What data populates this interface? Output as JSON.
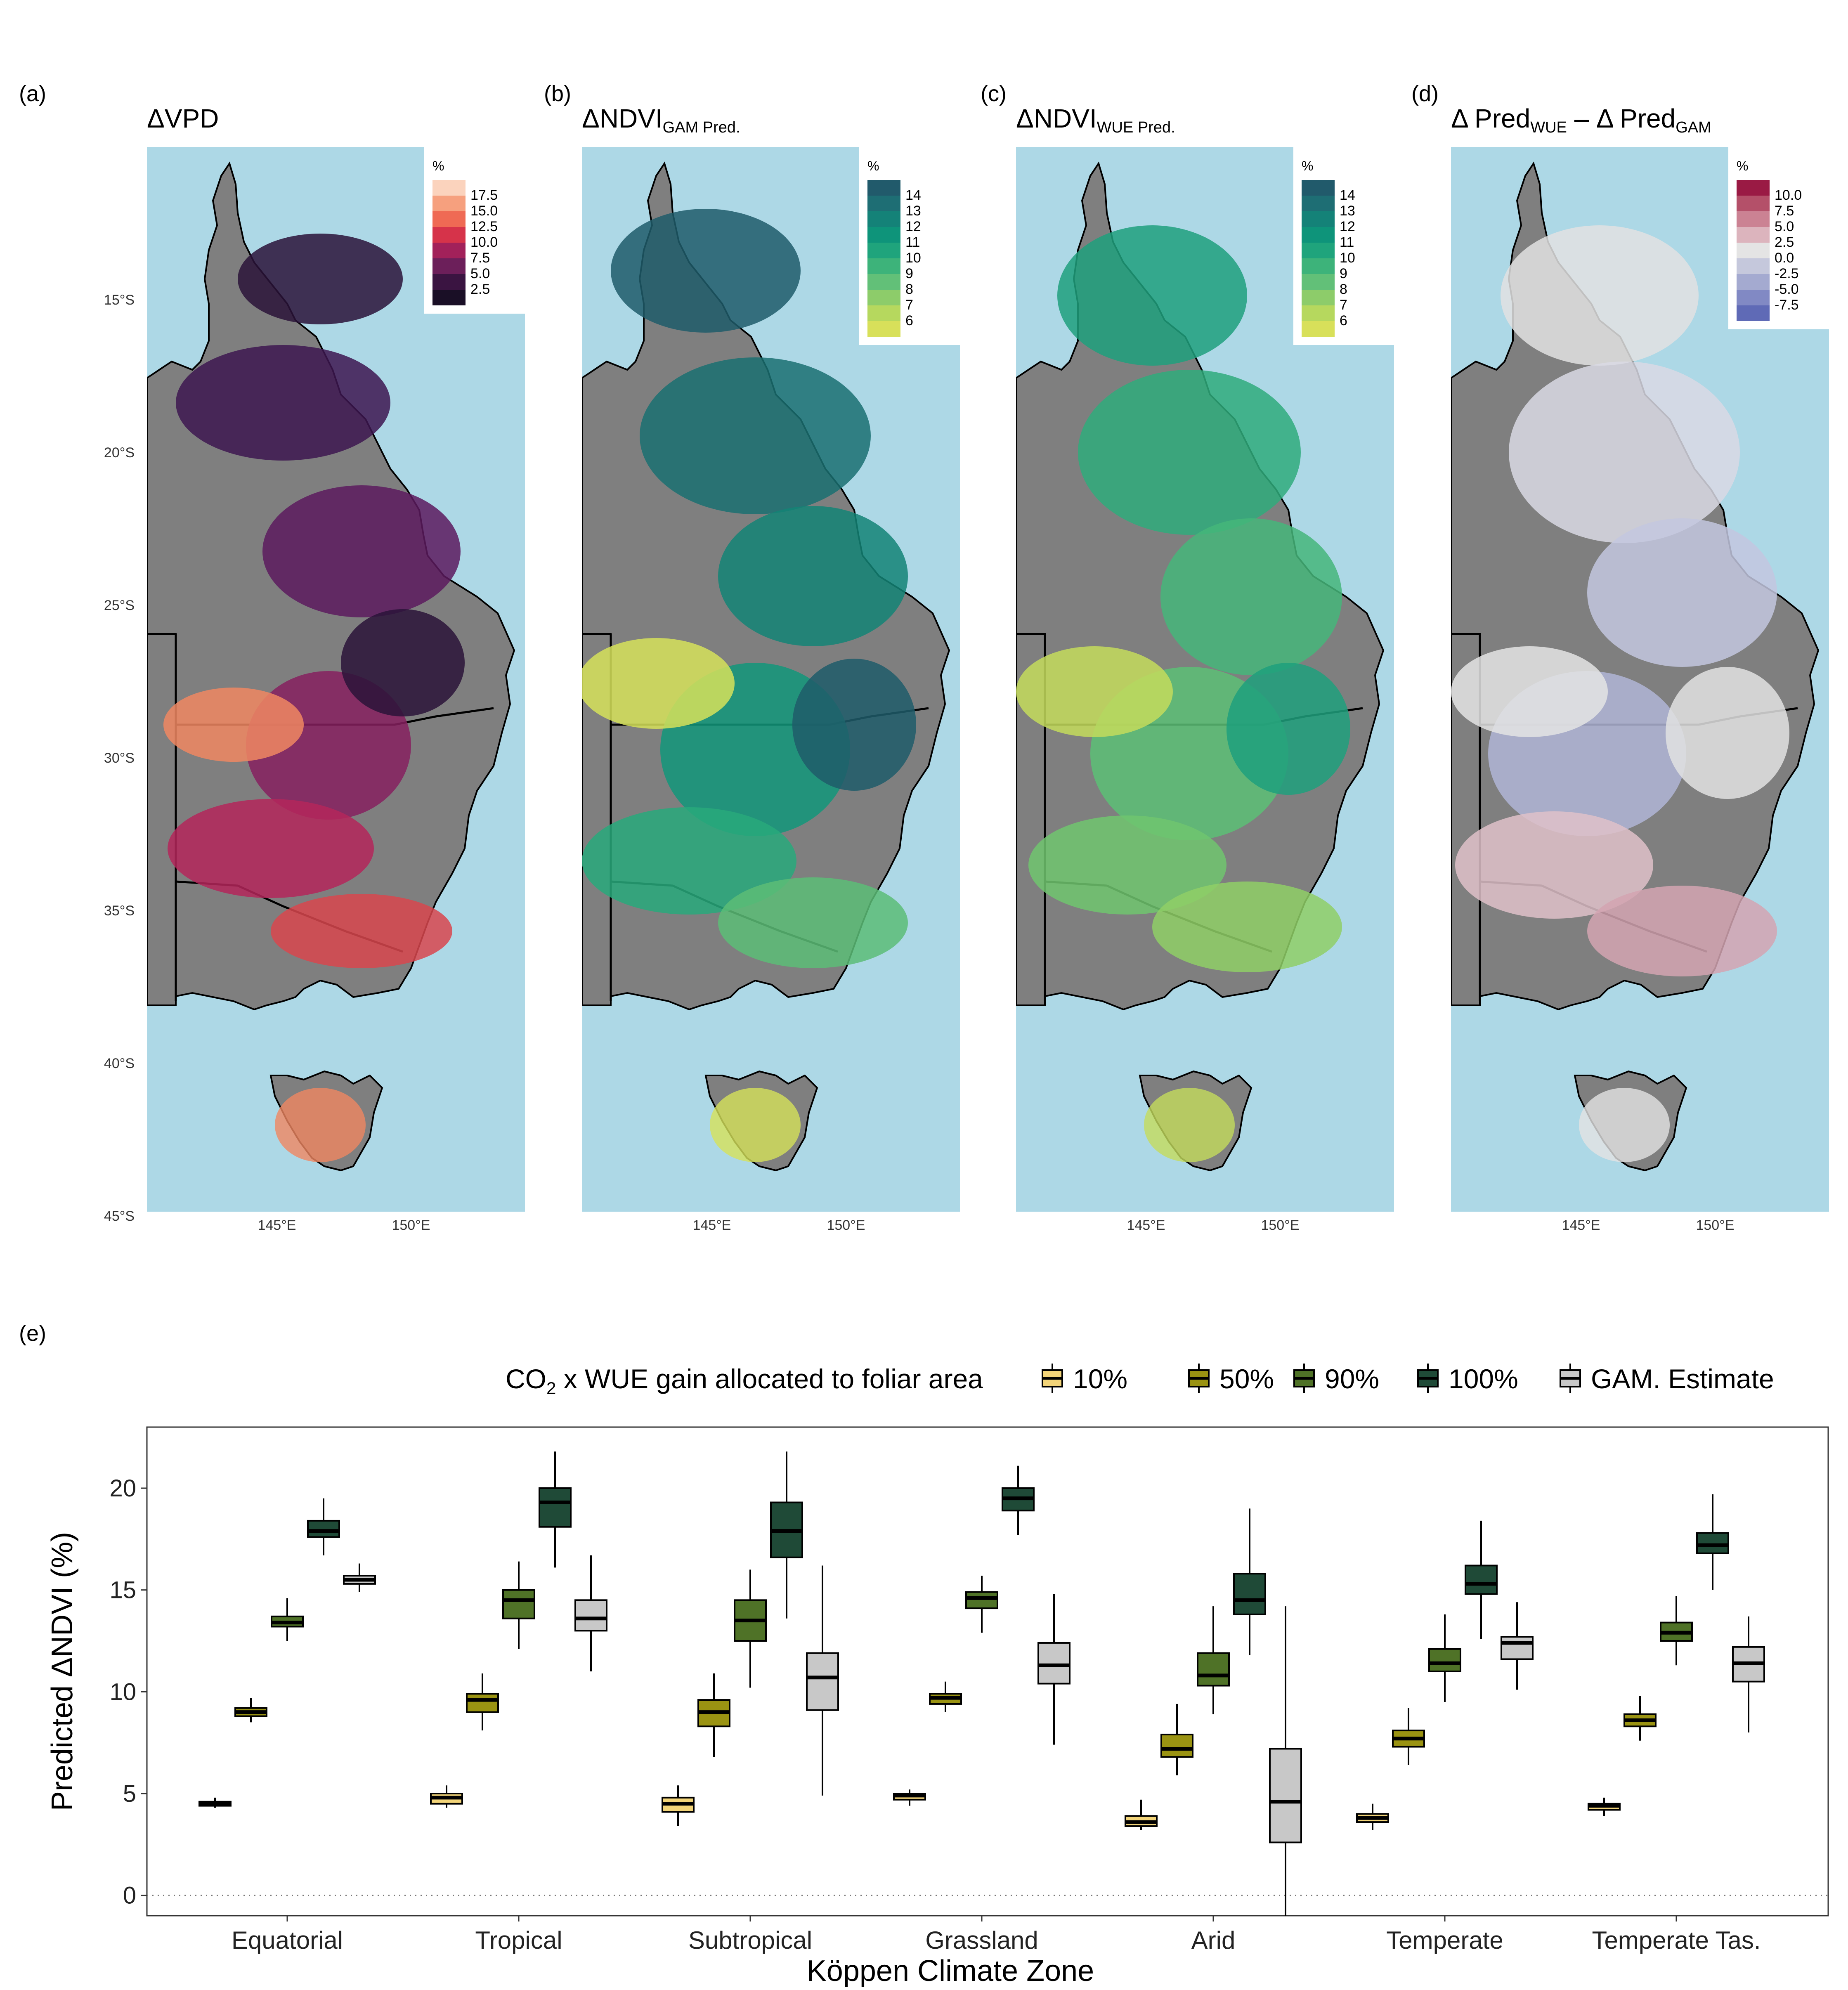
{
  "panels": [
    {
      "letter": "(a)",
      "title_main": "ΔVPD",
      "title_sub": "",
      "legend_unit": "%",
      "legend_labels": [
        "17.5",
        "15.0",
        "12.5",
        "10.0",
        "7.5",
        "5.0",
        "2.5"
      ],
      "legend_colors": [
        "#fbd3bd",
        "#f6a07e",
        "#ef6a54",
        "#d6334a",
        "#a2215a",
        "#6c1f5a",
        "#3a1441",
        "#1a0f26"
      ],
      "land_palette": [
        "#2a1338",
        "#3d1650",
        "#5c1a5e",
        "#86205f",
        "#b4265b",
        "#d8474d",
        "#f08762"
      ]
    },
    {
      "letter": "(b)",
      "title_main": "ΔNDVI",
      "title_sub": "GAM Pred.",
      "legend_unit": "%",
      "legend_labels": [
        "14",
        "13",
        "12",
        "11",
        "10",
        "9",
        "8",
        "7",
        "6"
      ],
      "legend_colors": [
        "#215a6b",
        "#1e6e74",
        "#148278",
        "#0e947a",
        "#1fa47c",
        "#3db37a",
        "#62c078",
        "#8dcc6a",
        "#b6d85e",
        "#d8e05a"
      ],
      "land_palette": [
        "#1f5c6a",
        "#1a7071",
        "#138476",
        "#12977a",
        "#28a97b",
        "#5cbd77",
        "#d6e25a"
      ]
    },
    {
      "letter": "(c)",
      "title_main": "ΔNDVI",
      "title_sub": "WUE Pred.",
      "legend_unit": "%",
      "legend_labels": [
        "14",
        "13",
        "12",
        "11",
        "10",
        "9",
        "8",
        "7",
        "6"
      ],
      "legend_colors": [
        "#215a6b",
        "#1e6e74",
        "#148278",
        "#0e947a",
        "#1fa47c",
        "#3db37a",
        "#62c078",
        "#8dcc6a",
        "#b6d85e",
        "#d8e05a"
      ],
      "land_palette": [
        "#1fa07d",
        "#2fac7b",
        "#45b67a",
        "#5cbf76",
        "#70c66f",
        "#8fcf66",
        "#c4dc5c"
      ]
    },
    {
      "letter": "(d)",
      "title_main": "Δ Pred",
      "title_sub": "WUE",
      "title_mid": " – Δ Pred",
      "title_sub2": "GAM",
      "legend_unit": "%",
      "legend_labels": [
        "10.0",
        "7.5",
        "5.0",
        "2.5",
        "0.0",
        "-2.5",
        "-5.0",
        "-7.5"
      ],
      "legend_colors": [
        "#9a1a44",
        "#b45069",
        "#cb8293",
        "#dcb4bd",
        "#e4e4e4",
        "#c5c8dc",
        "#a4aad0",
        "#8189c4",
        "#5f6ab6"
      ],
      "land_palette": [
        "#e2e2e2",
        "#d9d9e4",
        "#c3c7df",
        "#b0b5d6",
        "#dfc1c9",
        "#d3a5b1",
        "#e4e4e4"
      ]
    }
  ],
  "map_axes": {
    "lat_labels": [
      "15°S",
      "20°S",
      "25°S",
      "30°S",
      "35°S",
      "40°S",
      "45°S"
    ],
    "lon_labels": [
      "145°E",
      "150°E"
    ]
  },
  "chart_data": {
    "type": "box",
    "panel_letter": "(e)",
    "legend_title_pre": "CO",
    "legend_title_sub": "2",
    "legend_title_post": " x WUE gain allocated to foliar area",
    "xlabel": "Köppen Climate Zone",
    "ylabel": "Predicted ΔNDVI (%)",
    "ylim": [
      -1,
      23
    ],
    "yticks": [
      0,
      5,
      10,
      15,
      20
    ],
    "reference_line": 0,
    "categories": [
      "Equatorial",
      "Tropical",
      "Subtropical",
      "Grassland",
      "Arid",
      "Temperate",
      "Temperate Tas."
    ],
    "series": [
      {
        "name": "10%",
        "color": "#f2d479",
        "boxes": [
          [
            4.3,
            4.4,
            4.5,
            4.6,
            4.8
          ],
          [
            4.3,
            4.5,
            4.8,
            5.0,
            5.4
          ],
          [
            3.4,
            4.1,
            4.5,
            4.8,
            5.4
          ],
          [
            4.4,
            4.7,
            4.9,
            5.0,
            5.2
          ],
          [
            3.2,
            3.4,
            3.6,
            3.9,
            4.7
          ],
          [
            3.2,
            3.6,
            3.8,
            4.0,
            4.5
          ],
          [
            3.9,
            4.2,
            4.4,
            4.5,
            4.8
          ]
        ]
      },
      {
        "name": "50%",
        "color": "#9a9312",
        "boxes": [
          [
            8.5,
            8.8,
            9.0,
            9.2,
            9.7
          ],
          [
            8.1,
            9.0,
            9.6,
            9.9,
            10.9
          ],
          [
            6.8,
            8.3,
            9.0,
            9.6,
            10.9
          ],
          [
            9.0,
            9.4,
            9.7,
            9.9,
            10.5
          ],
          [
            5.9,
            6.8,
            7.2,
            7.9,
            9.4
          ],
          [
            6.4,
            7.3,
            7.7,
            8.1,
            9.2
          ],
          [
            7.6,
            8.3,
            8.6,
            8.9,
            9.8
          ]
        ]
      },
      {
        "name": "90%",
        "color": "#4f7227",
        "boxes": [
          [
            12.5,
            13.2,
            13.4,
            13.7,
            14.6
          ],
          [
            12.1,
            13.6,
            14.5,
            15.0,
            16.4
          ],
          [
            10.2,
            12.5,
            13.5,
            14.5,
            16.0
          ],
          [
            12.9,
            14.1,
            14.6,
            14.9,
            15.7
          ],
          [
            8.9,
            10.3,
            10.8,
            11.9,
            14.2
          ],
          [
            9.5,
            11.0,
            11.4,
            12.1,
            13.8
          ],
          [
            11.3,
            12.5,
            12.9,
            13.4,
            14.7
          ]
        ]
      },
      {
        "name": "100%",
        "color": "#1f4a37",
        "boxes": [
          [
            16.7,
            17.6,
            17.9,
            18.4,
            19.5
          ],
          [
            16.1,
            18.1,
            19.3,
            20.0,
            21.8
          ],
          [
            13.6,
            16.6,
            17.9,
            19.3,
            21.8
          ],
          [
            17.7,
            18.9,
            19.5,
            20.0,
            21.1
          ],
          [
            11.8,
            13.8,
            14.5,
            15.8,
            19.0
          ],
          [
            12.6,
            14.8,
            15.3,
            16.2,
            18.4
          ],
          [
            15.0,
            16.8,
            17.2,
            17.8,
            19.7
          ]
        ]
      },
      {
        "name": "GAM. Estimate",
        "color": "#c8c8c8",
        "boxes": [
          [
            14.9,
            15.3,
            15.5,
            15.7,
            16.3
          ],
          [
            11.0,
            13.0,
            13.6,
            14.5,
            16.7
          ],
          [
            4.9,
            9.1,
            10.7,
            11.9,
            16.2
          ],
          [
            7.4,
            10.4,
            11.3,
            12.4,
            14.8
          ],
          [
            -1.0,
            2.6,
            4.6,
            7.2,
            14.2
          ],
          [
            10.1,
            11.6,
            12.4,
            12.7,
            14.4
          ],
          [
            8.0,
            10.5,
            11.4,
            12.2,
            13.7
          ]
        ]
      }
    ]
  }
}
